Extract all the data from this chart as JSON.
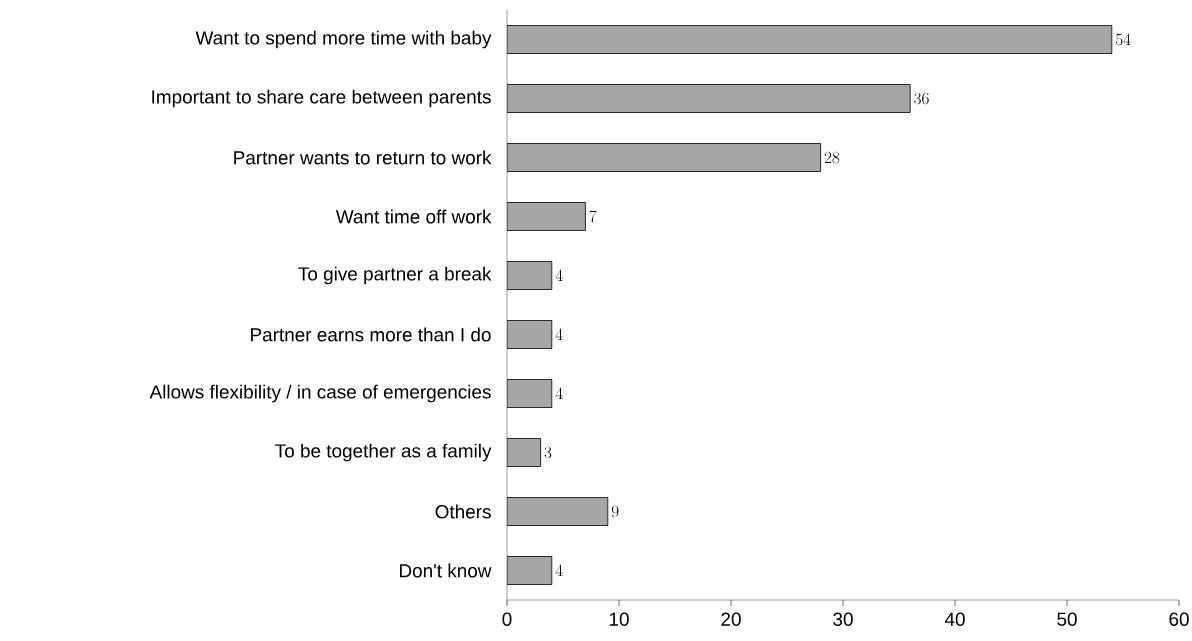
{
  "chart_data": {
    "type": "bar",
    "orientation": "horizontal",
    "categories": [
      "Want to spend more time with baby",
      "Important to share care between parents",
      "Partner wants to return to work",
      "Want time off work",
      "To give partner a break",
      "Partner earns more than I do",
      "Allows flexibility / in case of emergencies",
      "To be together as a family",
      "Others",
      "Don't know"
    ],
    "values": [
      54,
      36,
      28,
      7,
      4,
      4,
      4,
      3,
      9,
      4
    ],
    "color": "#a6a6a6",
    "xlim": [
      0,
      60
    ],
    "xticks": [
      0,
      10,
      20,
      30,
      40,
      50,
      60
    ],
    "data_labels": true
  }
}
